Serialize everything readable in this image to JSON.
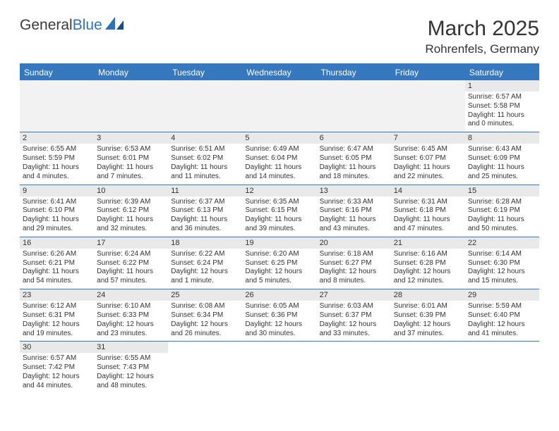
{
  "logo": {
    "text1": "General",
    "text2": "Blue"
  },
  "title": "March 2025",
  "location": "Rohrenfels, Germany",
  "colors": {
    "header_bg": "#3578bd",
    "header_text": "#ffffff",
    "stripe_bg": "#e9e9e9",
    "empty_bg": "#f2f2f2",
    "border": "#3578bd",
    "text": "#333333",
    "logo_blue": "#2b72b8"
  },
  "weekdays": [
    "Sunday",
    "Monday",
    "Tuesday",
    "Wednesday",
    "Thursday",
    "Friday",
    "Saturday"
  ],
  "lead_blanks": 6,
  "days": [
    {
      "n": 1,
      "sr": "6:57 AM",
      "ss": "5:58 PM",
      "dl": "11 hours and 0 minutes."
    },
    {
      "n": 2,
      "sr": "6:55 AM",
      "ss": "5:59 PM",
      "dl": "11 hours and 4 minutes."
    },
    {
      "n": 3,
      "sr": "6:53 AM",
      "ss": "6:01 PM",
      "dl": "11 hours and 7 minutes."
    },
    {
      "n": 4,
      "sr": "6:51 AM",
      "ss": "6:02 PM",
      "dl": "11 hours and 11 minutes."
    },
    {
      "n": 5,
      "sr": "6:49 AM",
      "ss": "6:04 PM",
      "dl": "11 hours and 14 minutes."
    },
    {
      "n": 6,
      "sr": "6:47 AM",
      "ss": "6:05 PM",
      "dl": "11 hours and 18 minutes."
    },
    {
      "n": 7,
      "sr": "6:45 AM",
      "ss": "6:07 PM",
      "dl": "11 hours and 22 minutes."
    },
    {
      "n": 8,
      "sr": "6:43 AM",
      "ss": "6:09 PM",
      "dl": "11 hours and 25 minutes."
    },
    {
      "n": 9,
      "sr": "6:41 AM",
      "ss": "6:10 PM",
      "dl": "11 hours and 29 minutes."
    },
    {
      "n": 10,
      "sr": "6:39 AM",
      "ss": "6:12 PM",
      "dl": "11 hours and 32 minutes."
    },
    {
      "n": 11,
      "sr": "6:37 AM",
      "ss": "6:13 PM",
      "dl": "11 hours and 36 minutes."
    },
    {
      "n": 12,
      "sr": "6:35 AM",
      "ss": "6:15 PM",
      "dl": "11 hours and 39 minutes."
    },
    {
      "n": 13,
      "sr": "6:33 AM",
      "ss": "6:16 PM",
      "dl": "11 hours and 43 minutes."
    },
    {
      "n": 14,
      "sr": "6:31 AM",
      "ss": "6:18 PM",
      "dl": "11 hours and 47 minutes."
    },
    {
      "n": 15,
      "sr": "6:28 AM",
      "ss": "6:19 PM",
      "dl": "11 hours and 50 minutes."
    },
    {
      "n": 16,
      "sr": "6:26 AM",
      "ss": "6:21 PM",
      "dl": "11 hours and 54 minutes."
    },
    {
      "n": 17,
      "sr": "6:24 AM",
      "ss": "6:22 PM",
      "dl": "11 hours and 57 minutes."
    },
    {
      "n": 18,
      "sr": "6:22 AM",
      "ss": "6:24 PM",
      "dl": "12 hours and 1 minute."
    },
    {
      "n": 19,
      "sr": "6:20 AM",
      "ss": "6:25 PM",
      "dl": "12 hours and 5 minutes."
    },
    {
      "n": 20,
      "sr": "6:18 AM",
      "ss": "6:27 PM",
      "dl": "12 hours and 8 minutes."
    },
    {
      "n": 21,
      "sr": "6:16 AM",
      "ss": "6:28 PM",
      "dl": "12 hours and 12 minutes."
    },
    {
      "n": 22,
      "sr": "6:14 AM",
      "ss": "6:30 PM",
      "dl": "12 hours and 15 minutes."
    },
    {
      "n": 23,
      "sr": "6:12 AM",
      "ss": "6:31 PM",
      "dl": "12 hours and 19 minutes."
    },
    {
      "n": 24,
      "sr": "6:10 AM",
      "ss": "6:33 PM",
      "dl": "12 hours and 23 minutes."
    },
    {
      "n": 25,
      "sr": "6:08 AM",
      "ss": "6:34 PM",
      "dl": "12 hours and 26 minutes."
    },
    {
      "n": 26,
      "sr": "6:05 AM",
      "ss": "6:36 PM",
      "dl": "12 hours and 30 minutes."
    },
    {
      "n": 27,
      "sr": "6:03 AM",
      "ss": "6:37 PM",
      "dl": "12 hours and 33 minutes."
    },
    {
      "n": 28,
      "sr": "6:01 AM",
      "ss": "6:39 PM",
      "dl": "12 hours and 37 minutes."
    },
    {
      "n": 29,
      "sr": "5:59 AM",
      "ss": "6:40 PM",
      "dl": "12 hours and 41 minutes."
    },
    {
      "n": 30,
      "sr": "6:57 AM",
      "ss": "7:42 PM",
      "dl": "12 hours and 44 minutes."
    },
    {
      "n": 31,
      "sr": "6:55 AM",
      "ss": "7:43 PM",
      "dl": "12 hours and 48 minutes."
    }
  ],
  "labels": {
    "sunrise": "Sunrise:",
    "sunset": "Sunset:",
    "daylight": "Daylight:"
  }
}
